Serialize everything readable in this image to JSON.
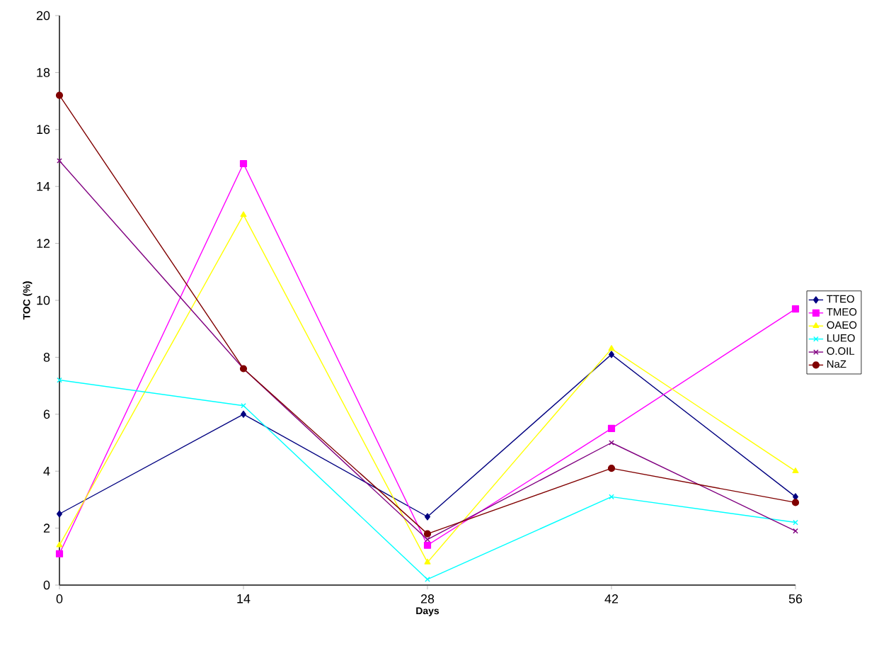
{
  "chart_data": {
    "type": "line",
    "xlabel": "Days",
    "ylabel": "TOC (%)",
    "x": [
      0,
      14,
      28,
      42,
      56
    ],
    "xlim": [
      0,
      56
    ],
    "ylim": [
      0,
      20
    ],
    "xticks": [
      0,
      14,
      28,
      42,
      56
    ],
    "yticks": [
      0,
      2,
      4,
      6,
      8,
      10,
      12,
      14,
      16,
      18,
      20
    ],
    "grid": false,
    "legend": "right",
    "line_style": "solid",
    "series": [
      {
        "name": "TTEO",
        "color": "#000080",
        "marker": "diamond",
        "values": [
          2.5,
          6.0,
          2.4,
          8.1,
          3.1
        ]
      },
      {
        "name": "TMEO",
        "color": "#ff00ff",
        "marker": "square",
        "values": [
          1.1,
          14.8,
          1.4,
          5.5,
          9.7
        ]
      },
      {
        "name": "OAEO",
        "color": "#ffff00",
        "marker": "triangle",
        "values": [
          1.4,
          13.0,
          0.8,
          8.3,
          4.0
        ]
      },
      {
        "name": "LUEO",
        "color": "#00ffff",
        "marker": "cross",
        "values": [
          7.2,
          6.3,
          0.2,
          3.1,
          2.2
        ]
      },
      {
        "name": "O.OIL",
        "color": "#800080",
        "marker": "cross",
        "values": [
          14.9,
          7.6,
          1.6,
          5.0,
          1.9
        ]
      },
      {
        "name": "NaZ",
        "color": "#800000",
        "marker": "circle",
        "values": [
          17.2,
          7.6,
          1.8,
          4.1,
          2.9
        ]
      }
    ]
  }
}
